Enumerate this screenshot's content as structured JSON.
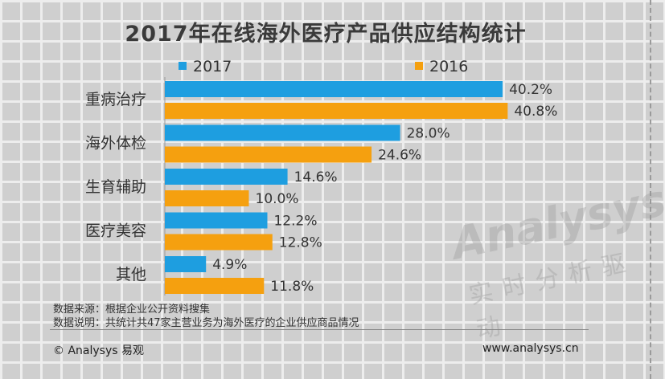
{
  "title": "2017年在线海外医疗产品供应结构统计",
  "colors": {
    "s2017": "#1e9ee0",
    "s2016": "#f5a00f"
  },
  "watermark": {
    "brand": "Analysys",
    "slogan": "实时分析驱动"
  },
  "chart_data": {
    "type": "bar",
    "orientation": "horizontal",
    "title": "2017年在线海外医疗产品供应结构统计",
    "categories": [
      "重病治疗",
      "海外体检",
      "生育辅助",
      "医疗美容",
      "其他"
    ],
    "series": [
      {
        "name": "2017",
        "values": [
          40.2,
          28.0,
          14.6,
          12.2,
          4.9
        ],
        "labels": [
          "40.2%",
          "28.0%",
          "14.6%",
          "12.2%",
          "4.9%"
        ]
      },
      {
        "name": "2016",
        "values": [
          40.8,
          24.6,
          10.0,
          12.8,
          11.8
        ],
        "labels": [
          "40.8%",
          "24.6%",
          "10.0%",
          "12.8%",
          "11.8%"
        ]
      }
    ],
    "xlim": [
      0,
      50
    ],
    "unit": "%",
    "legend": "top"
  },
  "notes": {
    "source": "数据来源：根据企业公开资料搜集",
    "explain": "数据说明：共统计共47家主营业务为海外医疗的企业供应商品情况"
  },
  "footer": {
    "copyright": "© Analysys 易观",
    "website": "www.analysys.cn"
  }
}
